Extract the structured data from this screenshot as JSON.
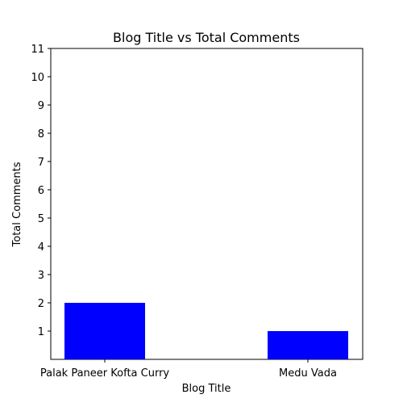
{
  "chart_data": {
    "type": "bar",
    "title": "Blog Title vs Total Comments",
    "xlabel": "Blog Title",
    "ylabel": "Total Comments",
    "categories": [
      "Palak Paneer Kofta Curry",
      "Medu Vada"
    ],
    "values": [
      2,
      1
    ],
    "ylim": [
      0,
      11
    ],
    "yticks": [
      1,
      2,
      3,
      4,
      5,
      6,
      7,
      8,
      9,
      10,
      11
    ],
    "bar_color": "#0000ff",
    "grid": false,
    "legend": "none"
  }
}
